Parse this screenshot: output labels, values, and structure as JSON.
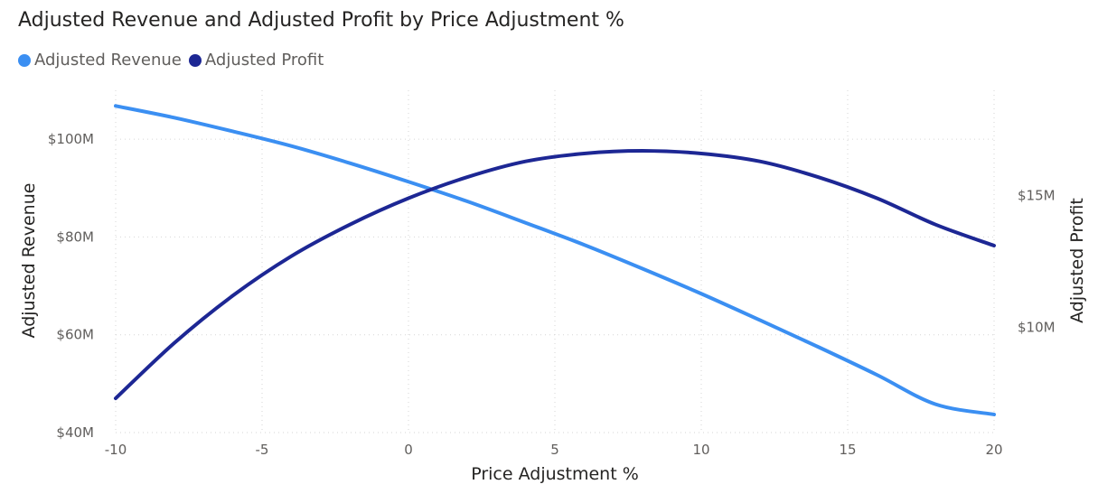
{
  "chart_data": {
    "type": "line",
    "title": "Adjusted Revenue and Adjusted Profit by Price Adjustment %",
    "xlabel": "Price Adjustment %",
    "ylabel": "Adjusted Revenue",
    "y2label": "Adjusted Profit",
    "xlim": [
      -10,
      20
    ],
    "ylim": [
      40,
      110
    ],
    "y2lim": [
      6,
      19
    ],
    "x_ticks": [
      -10,
      -5,
      0,
      5,
      10,
      15,
      20
    ],
    "x_tick_labels": [
      "-10",
      "-5",
      "0",
      "5",
      "10",
      "15",
      "20"
    ],
    "y_ticks": [
      40,
      60,
      80,
      100
    ],
    "y_tick_labels": [
      "$40M",
      "$60M",
      "$80M",
      "$100M"
    ],
    "y2_ticks": [
      10,
      15
    ],
    "y2_tick_labels": [
      "$10M",
      "$15M"
    ],
    "grid": true,
    "legend_position": "top-left",
    "x": [
      -10,
      -8,
      -6,
      -4,
      -2,
      0,
      2,
      4,
      6,
      8,
      10,
      12,
      14,
      16,
      18,
      20
    ],
    "series": [
      {
        "name": "Adjusted Revenue",
        "axis": "left",
        "color": "#3b8ff2",
        "values": [
          106.8,
          104.4,
          101.6,
          98.6,
          95.1,
          91.3,
          87.3,
          82.9,
          78.4,
          73.5,
          68.4,
          63.0,
          57.5,
          51.8,
          45.8,
          43.7
        ]
      },
      {
        "name": "Adjusted Profit",
        "axis": "right",
        "color": "#1d2794",
        "values": [
          7.3,
          9.4,
          11.2,
          12.7,
          13.9,
          14.9,
          15.7,
          16.3,
          16.6,
          16.7,
          16.6,
          16.3,
          15.7,
          14.9,
          13.9,
          13.1
        ]
      }
    ]
  }
}
